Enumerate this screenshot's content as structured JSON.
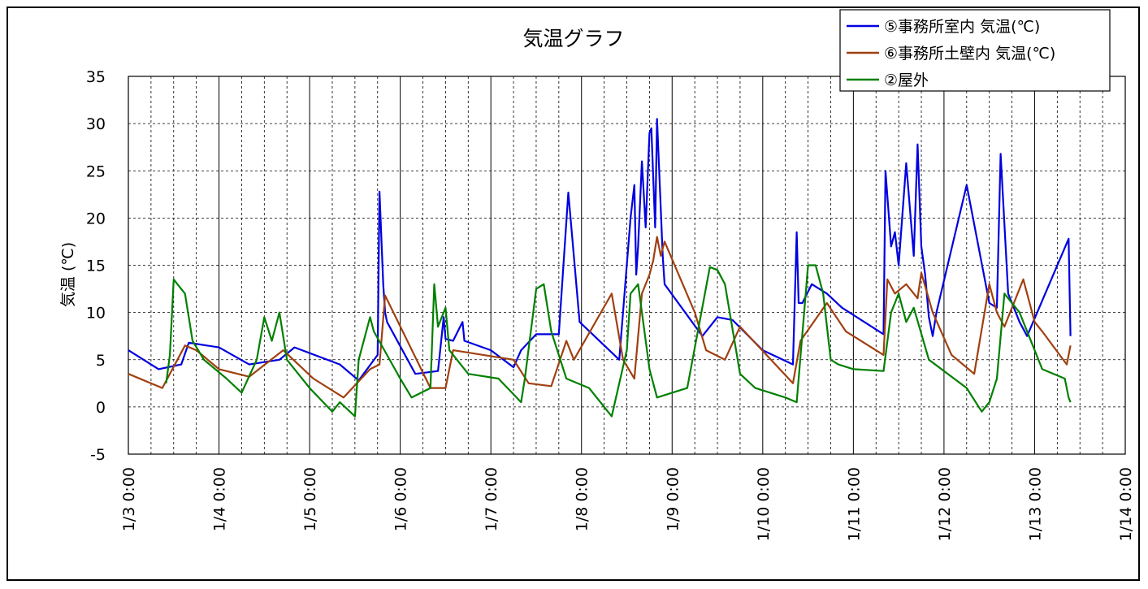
{
  "chart_data": {
    "type": "line",
    "title": "気温グラフ",
    "ylabel": "気温 (℃)",
    "xlabel": "",
    "ylim": [
      -5,
      35
    ],
    "yticks": [
      -5,
      0,
      5,
      10,
      15,
      20,
      25,
      30,
      35
    ],
    "xlim_days": [
      3,
      14
    ],
    "xticks": [
      "1/3 0:00",
      "1/4 0:00",
      "1/5 0:00",
      "1/6 0:00",
      "1/7 0:00",
      "1/8 0:00",
      "1/9 0:00",
      "1/10 0:00",
      "1/11 0:00",
      "1/12 0:00",
      "1/13 0:00",
      "1/14 0:00"
    ],
    "grid": true,
    "legend_position": "top-right",
    "series": [
      {
        "name": "⑤事務所室内 気温(℃)",
        "color": "#0000e0",
        "x": [
          "1/3 0:00",
          "1/3 8:00",
          "1/3 14:00",
          "1/3 16:00",
          "1/4 0:00",
          "1/4 8:00",
          "1/4 16:00",
          "1/4 20:00",
          "1/5 8:00",
          "1/5 13:00",
          "1/5 18:00",
          "1/5 18:30",
          "1/5 19:30",
          "1/5 20:00",
          "1/5 20:30",
          "1/6 4:00",
          "1/6 10:00",
          "1/6 11:30",
          "1/6 12:00",
          "1/6 14:00",
          "1/6 16:30",
          "1/6 17:00",
          "1/7 0:00",
          "1/7 6:00",
          "1/7 8:00",
          "1/7 12:00",
          "1/7 18:00",
          "1/7 20:30",
          "1/7 23:30",
          "1/8 10:00",
          "1/8 13:00",
          "1/8 14:00",
          "1/8 14:30",
          "1/8 15:00",
          "1/8 16:00",
          "1/8 17:00",
          "1/8 18:00",
          "1/8 18:30",
          "1/8 19:30",
          "1/8 20:00",
          "1/8 21:00",
          "1/8 21:30",
          "1/8 22:00",
          "1/9 8:00",
          "1/9 12:00",
          "1/9 16:00",
          "1/10 0:00",
          "1/10 8:00",
          "1/10 9:00",
          "1/10 9:30",
          "1/10 10:30",
          "1/10 13:00",
          "1/10 17:00",
          "1/10 21:00",
          "1/11 8:00",
          "1/11 8:30",
          "1/11 10:00",
          "1/11 11:00",
          "1/11 12:00",
          "1/11 14:00",
          "1/11 16:00",
          "1/11 17:00",
          "1/11 18:00",
          "1/11 19:00",
          "1/11 20:00",
          "1/11 21:00",
          "1/11 22:00",
          "1/12 6:00",
          "1/12 12:00",
          "1/12 14:00",
          "1/12 15:00",
          "1/12 17:00",
          "1/12 20:00",
          "1/12 22:00",
          "1/13 9:00",
          "1/13 9:30"
        ],
        "y": [
          6,
          4,
          4.5,
          6.8,
          6.3,
          4.5,
          5,
          6.3,
          4.5,
          2.8,
          5.5,
          22.8,
          13,
          10,
          9,
          3.5,
          3.8,
          9.5,
          7.2,
          7,
          9,
          7,
          6,
          4.2,
          6,
          7.7,
          7.7,
          22.7,
          9,
          5,
          20,
          23.5,
          14,
          17,
          26,
          19,
          29,
          29.5,
          19,
          30.5,
          21,
          16,
          13,
          7.5,
          9.5,
          9.2,
          6,
          4.5,
          18.5,
          11,
          11,
          13,
          12,
          10.5,
          7.7,
          25,
          17,
          18.5,
          15,
          25.8,
          16,
          27.8,
          17,
          14,
          9.5,
          7.5,
          10,
          23.5,
          11,
          10.5,
          26.8,
          12,
          9,
          7.5,
          17.8,
          7.5
        ]
      },
      {
        "name": "⑥事務所土壁内 気温(℃)",
        "color": "#a04010",
        "x": [
          "1/3 0:00",
          "1/3 9:00",
          "1/3 15:00",
          "1/3 18:00",
          "1/4 0:00",
          "1/4 8:00",
          "1/4 17:00",
          "1/5 1:00",
          "1/5 9:00",
          "1/5 16:00",
          "1/5 18:30",
          "1/5 20:00",
          "1/6 8:00",
          "1/6 12:00",
          "1/6 14:00",
          "1/7 6:00",
          "1/7 10:00",
          "1/7 16:00",
          "1/7 20:00",
          "1/7 22:00",
          "1/8 8:00",
          "1/8 11:00",
          "1/8 14:00",
          "1/8 16:00",
          "1/8 18:00",
          "1/8 19:00",
          "1/8 20:00",
          "1/8 21:00",
          "1/8 22:00",
          "1/9 6:00",
          "1/9 9:00",
          "1/9 14:00",
          "1/9 18:00",
          "1/10 8:00",
          "1/10 10:00",
          "1/10 17:00",
          "1/10 22:00",
          "1/11 8:00",
          "1/11 9:00",
          "1/11 11:00",
          "1/11 14:00",
          "1/11 17:00",
          "1/11 18:00",
          "1/11 21:00",
          "1/12 2:00",
          "1/12 8:00",
          "1/12 12:00",
          "1/12 14:00",
          "1/12 16:00",
          "1/12 21:00",
          "1/13 0:00",
          "1/13 2:00",
          "1/13 8:30",
          "1/13 9:30"
        ],
        "y": [
          3.5,
          2,
          6.5,
          6,
          4,
          3.2,
          6,
          3,
          1,
          4,
          4.5,
          11.8,
          2,
          2,
          6,
          5,
          2.5,
          2.2,
          7,
          5,
          12,
          5,
          3,
          12,
          14,
          15.5,
          18,
          16,
          17.5,
          10,
          6,
          5,
          8.5,
          2.5,
          7,
          11,
          8,
          5.5,
          13.5,
          12,
          13,
          11.5,
          14.2,
          10,
          5.5,
          3.5,
          13,
          10,
          8.5,
          13.5,
          9,
          8,
          4.5,
          6.5
        ]
      },
      {
        "name": "②屋外",
        "color": "#008000",
        "x": [
          "1/3 10:00",
          "1/3 11:00",
          "1/3 12:00",
          "1/3 13:00",
          "1/3 15:00",
          "1/3 17:00",
          "1/3 20:00",
          "1/4 2:00",
          "1/4 6:00",
          "1/4 10:00",
          "1/4 12:00",
          "1/4 14:00",
          "1/4 16:00",
          "1/4 18:00",
          "1/4 20:00",
          "1/5 0:00",
          "1/5 6:00",
          "1/5 8:00",
          "1/5 12:00",
          "1/5 13:00",
          "1/5 16:00",
          "1/5 17:00",
          "1/6 0:00",
          "1/6 3:00",
          "1/6 8:00",
          "1/6 9:00",
          "1/6 10:00",
          "1/6 12:00",
          "1/6 13:00",
          "1/6 18:00",
          "1/7 2:00",
          "1/7 8:00",
          "1/7 9:00",
          "1/7 12:00",
          "1/7 14:00",
          "1/7 16:00",
          "1/7 20:00",
          "1/8 2:00",
          "1/8 8:00",
          "1/8 12:00",
          "1/8 13:00",
          "1/8 15:00",
          "1/8 16:00",
          "1/8 18:00",
          "1/8 20:00",
          "1/9 0:00",
          "1/9 4:00",
          "1/9 10:00",
          "1/9 12:00",
          "1/9 14:00",
          "1/9 18:00",
          "1/9 22:00",
          "1/10 6:00",
          "1/10 9:00",
          "1/10 12:00",
          "1/10 14:00",
          "1/10 16:00",
          "1/10 18:00",
          "1/10 20:00",
          "1/11 0:00",
          "1/11 8:00",
          "1/11 10:00",
          "1/11 12:00",
          "1/11 14:00",
          "1/11 16:00",
          "1/11 20:00",
          "1/12 6:00",
          "1/12 10:00",
          "1/12 12:00",
          "1/12 14:00",
          "1/12 16:00",
          "1/12 20:00",
          "1/13 2:00",
          "1/13 8:00",
          "1/13 9:00",
          "1/13 9:30"
        ],
        "y": [
          2.5,
          5.5,
          13.5,
          13,
          12,
          7,
          5,
          3,
          1.5,
          5,
          9.5,
          7,
          10,
          5,
          4,
          2,
          -0.5,
          0.5,
          -1,
          5,
          9.5,
          8,
          3,
          1,
          2,
          13,
          8.5,
          10.5,
          6,
          3.5,
          3,
          0.5,
          3,
          12.5,
          13,
          8,
          3,
          2,
          -1,
          6,
          12,
          13,
          10,
          4,
          1,
          1.5,
          2,
          14.8,
          14.5,
          13,
          3.5,
          2,
          1,
          0.5,
          15,
          15,
          12,
          5,
          4.5,
          4,
          3.8,
          10,
          12,
          9,
          10.5,
          5,
          2,
          -0.5,
          0.5,
          3,
          12,
          10,
          4,
          3,
          1,
          0.5
        ]
      }
    ]
  }
}
